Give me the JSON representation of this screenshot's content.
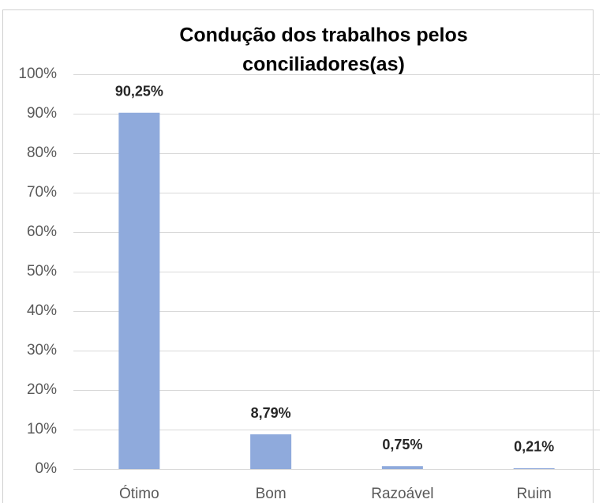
{
  "chart_data": {
    "type": "bar",
    "title": [
      "Condução dos trabalhos pelos",
      "conciliadores(as)"
    ],
    "categories": [
      "Ótimo",
      "Bom",
      "Razoável",
      "Ruim"
    ],
    "values": [
      90.25,
      8.79,
      0.75,
      0.21
    ],
    "value_labels": [
      "90,25%",
      "8,79%",
      "0,75%",
      "0,21%"
    ],
    "color": "#8faadc",
    "ylim": [
      0,
      100
    ],
    "yticks": [
      {
        "value": 0,
        "label": "0%"
      },
      {
        "value": 10,
        "label": "10%"
      },
      {
        "value": 20,
        "label": "20%"
      },
      {
        "value": 30,
        "label": "30%"
      },
      {
        "value": 40,
        "label": "40%"
      },
      {
        "value": 50,
        "label": "50%"
      },
      {
        "value": 60,
        "label": "60%"
      },
      {
        "value": 70,
        "label": "70%"
      },
      {
        "value": 80,
        "label": "80%"
      },
      {
        "value": 90,
        "label": "90%"
      },
      {
        "value": 100,
        "label": "100%"
      }
    ],
    "grid": true
  }
}
